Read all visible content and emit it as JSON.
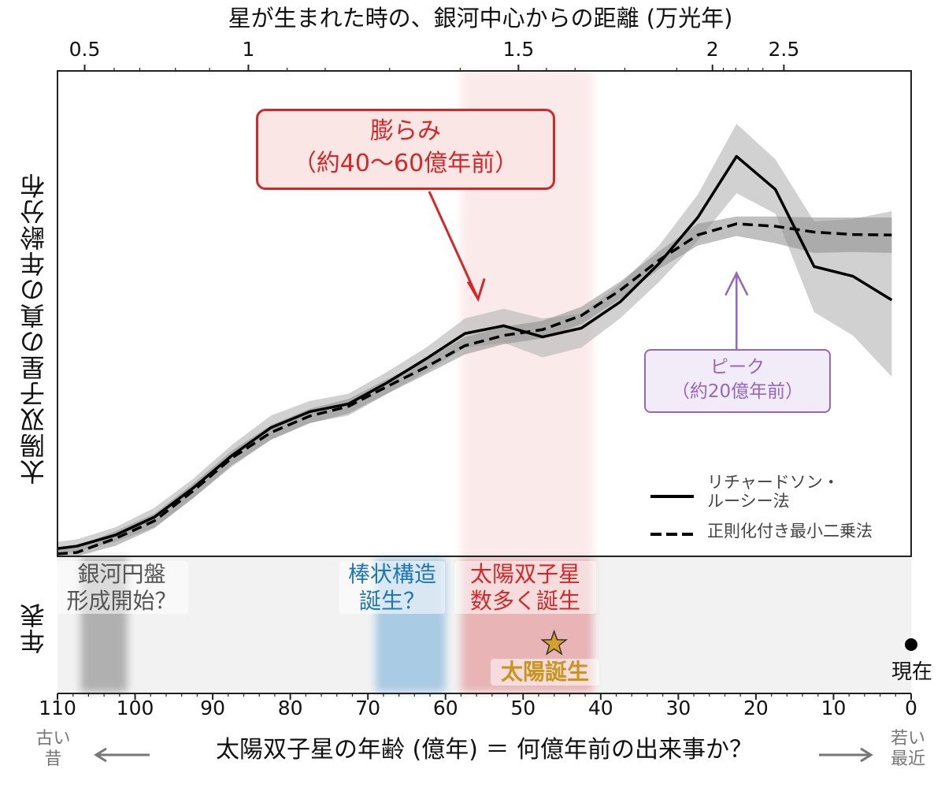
{
  "chart_data": {
    "type": "line",
    "title": "",
    "xlabel": "太陽双子星の年齢 (億年) ＝ 何億年前の出来事か？",
    "ylabel": "太陽双子星の真の年齢分布",
    "xlim": [
      110,
      0
    ],
    "x_ticks": [
      "110",
      "100",
      "90",
      "80",
      "70",
      "60",
      "50",
      "40",
      "30",
      "20",
      "10",
      "0"
    ],
    "x_tick_values": [
      110,
      100,
      90,
      80,
      70,
      60,
      50,
      40,
      30,
      20,
      10,
      0
    ],
    "top_axis": {
      "label": "星が生まれた時の、銀河中心からの距離 (万光年)",
      "ticks": [
        {
          "label": "0.5",
          "age": 106.5
        },
        {
          "label": "1",
          "age": 85.4
        },
        {
          "label": "1.5",
          "age": 50.6
        },
        {
          "label": "2",
          "age": 25.6
        },
        {
          "label": "2.5",
          "age": 16.4
        }
      ],
      "minor_tick_ages": [
        102.7,
        99.4,
        94.8,
        90.4,
        80.4,
        75.5,
        67.2,
        58.1,
        47.0,
        43.3,
        36.9,
        30.2,
        24.2,
        22.6,
        21.0,
        19.1
      ]
    },
    "y_ticks_shown": false,
    "legend_placement": "lower-right",
    "x": [
      110,
      107.5,
      102.5,
      97.5,
      92.5,
      87.5,
      82.5,
      77.5,
      72.5,
      67.5,
      62.5,
      57.5,
      52.5,
      47.5,
      42.5,
      37.5,
      32.5,
      27.5,
      22.5,
      17.5,
      12.5,
      7.5,
      2.5
    ],
    "series": [
      {
        "name": "リチャードソン・\nルーシー法",
        "style": "solid",
        "values": [
          0.016,
          0.021,
          0.044,
          0.081,
          0.141,
          0.208,
          0.265,
          0.298,
          0.314,
          0.358,
          0.407,
          0.459,
          0.475,
          0.452,
          0.47,
          0.524,
          0.603,
          0.698,
          0.824,
          0.756,
          0.597,
          0.577,
          0.528
        ],
        "band_upper": [
          0.03,
          0.035,
          0.06,
          0.1,
          0.16,
          0.23,
          0.29,
          0.32,
          0.335,
          0.38,
          0.43,
          0.49,
          0.51,
          0.49,
          0.5,
          0.56,
          0.64,
          0.745,
          0.891,
          0.818,
          0.69,
          0.695,
          0.711
        ],
        "band_lower": [
          0.005,
          0.01,
          0.03,
          0.06,
          0.12,
          0.185,
          0.24,
          0.275,
          0.29,
          0.335,
          0.38,
          0.43,
          0.44,
          0.41,
          0.43,
          0.49,
          0.565,
          0.65,
          0.748,
          0.706,
          0.503,
          0.455,
          0.37
        ]
      },
      {
        "name": "正則化付き最小二乗法",
        "style": "dashed",
        "values": [
          0.005,
          0.008,
          0.037,
          0.073,
          0.135,
          0.203,
          0.255,
          0.289,
          0.309,
          0.35,
          0.39,
          0.434,
          0.455,
          0.467,
          0.496,
          0.548,
          0.61,
          0.662,
          0.685,
          0.68,
          0.668,
          0.663,
          0.662
        ],
        "band_upper": [
          0.015,
          0.02,
          0.052,
          0.088,
          0.15,
          0.218,
          0.27,
          0.304,
          0.324,
          0.365,
          0.405,
          0.452,
          0.473,
          0.485,
          0.514,
          0.566,
          0.628,
          0.685,
          0.7,
          0.7,
          0.698,
          0.698,
          0.698
        ],
        "band_lower": [
          0.0,
          0.0,
          0.022,
          0.058,
          0.12,
          0.188,
          0.24,
          0.274,
          0.294,
          0.335,
          0.375,
          0.416,
          0.437,
          0.449,
          0.478,
          0.53,
          0.592,
          0.64,
          0.66,
          0.645,
          0.625,
          0.627,
          0.625
        ]
      }
    ],
    "highlight_band": {
      "from": 58,
      "to": 41,
      "color": "#d62728"
    },
    "annotations": [
      {
        "text": "膨らみ\n（約40〜60億年前）",
        "color": "#d62728",
        "arrow_to_age": 55.8,
        "arrow_to_value": 0.53
      },
      {
        "text": "ピーク\n（約20億年前）",
        "color": "#9467bd",
        "arrow_to_age": 22.5,
        "arrow_to_value": 0.58
      }
    ],
    "timeline": {
      "label": "年表",
      "events": [
        {
          "text": "銀河円盤\n形成開始？",
          "from": 107,
          "to": 101,
          "color": "#555555",
          "band_color": "#b0b0b0"
        },
        {
          "text": "棒状構造\n誕生？",
          "from": 69,
          "to": 60,
          "color": "#1f77b4",
          "band_color": "#a9cbe3"
        },
        {
          "text": "太陽双子星\n数多く誕生",
          "from": 58,
          "to": 41,
          "color": "#d62728",
          "band_color": "#e8b4b6"
        },
        {
          "text": "太陽誕生",
          "age": 46,
          "marker": "star",
          "color": "#c8951f"
        },
        {
          "text": "現在",
          "age": 0,
          "marker": "dot",
          "color": "#111111"
        }
      ]
    },
    "left_note": "古い\n昔",
    "right_note": "若い\n最近"
  }
}
